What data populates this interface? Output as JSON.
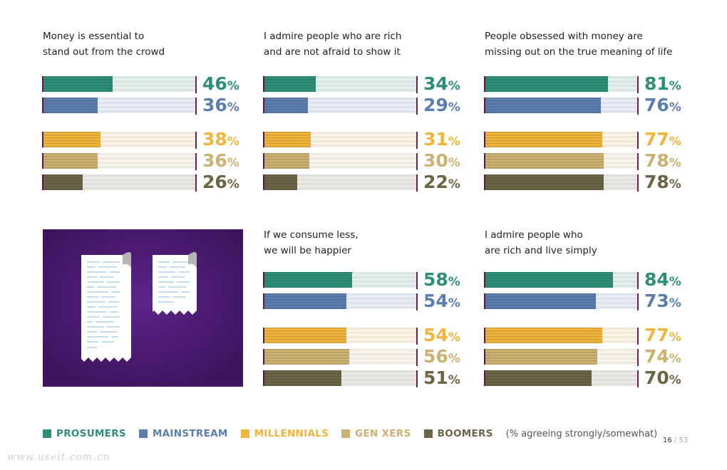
{
  "colors": {
    "prosumers": "#2e8f77",
    "mainstream": "#5b7eaf",
    "millennials": "#f1b53b",
    "genxers": "#ccb172",
    "boomers": "#6b6546",
    "illustration_bg": "#4a1a72"
  },
  "legend": {
    "items": [
      {
        "label": "PROSUMERS",
        "color": "#2e8f77"
      },
      {
        "label": "MAINSTREAM",
        "color": "#5b7eaf"
      },
      {
        "label": "MILLENNIALS",
        "color": "#f1b53b"
      },
      {
        "label": "GEN XERS",
        "color": "#ccb172"
      },
      {
        "label": "BOOMERS",
        "color": "#6b6546"
      }
    ],
    "note": "(% agreeing strongly/somewhat)"
  },
  "page": {
    "current": "16",
    "separator": "/",
    "total": "53"
  },
  "watermark": "www.useit.com.cn",
  "illustration": {
    "icon": "receipts-icon"
  },
  "chart_data": [
    {
      "type": "bar",
      "title": "Money is essential to\nstand out from the crowd",
      "categories": [
        "PROSUMERS",
        "MAINSTREAM",
        "MILLENNIALS",
        "GEN XERS",
        "BOOMERS"
      ],
      "values": [
        46,
        36,
        38,
        36,
        26
      ],
      "unit": "%",
      "xlim": [
        0,
        100
      ]
    },
    {
      "type": "bar",
      "title": "I admire people who are rich\nand are not afraid to show it",
      "categories": [
        "PROSUMERS",
        "MAINSTREAM",
        "MILLENNIALS",
        "GEN XERS",
        "BOOMERS"
      ],
      "values": [
        34,
        29,
        31,
        30,
        22
      ],
      "unit": "%",
      "xlim": [
        0,
        100
      ]
    },
    {
      "type": "bar",
      "title": "People obsessed with money are\nmissing out on the true meaning of life",
      "categories": [
        "PROSUMERS",
        "MAINSTREAM",
        "MILLENNIALS",
        "GEN XERS",
        "BOOMERS"
      ],
      "values": [
        81,
        76,
        77,
        78,
        78
      ],
      "unit": "%",
      "xlim": [
        0,
        100
      ]
    },
    {
      "type": "bar",
      "title": "If we consume less,\nwe will be happier",
      "categories": [
        "PROSUMERS",
        "MAINSTREAM",
        "MILLENNIALS",
        "GEN XERS",
        "BOOMERS"
      ],
      "values": [
        58,
        54,
        54,
        56,
        51
      ],
      "unit": "%",
      "xlim": [
        0,
        100
      ]
    },
    {
      "type": "bar",
      "title": "I admire people who\nare rich and live simply",
      "categories": [
        "PROSUMERS",
        "MAINSTREAM",
        "MILLENNIALS",
        "GEN XERS",
        "BOOMERS"
      ],
      "values": [
        84,
        73,
        77,
        74,
        70
      ],
      "unit": "%",
      "xlim": [
        0,
        100
      ]
    }
  ]
}
